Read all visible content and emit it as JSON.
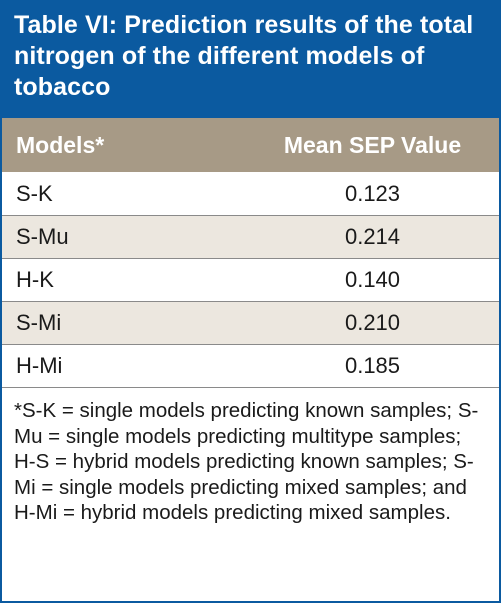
{
  "title": "Table VI: Prediction results of the total nitrogen of the different models of tobacco",
  "columns": [
    "Models*",
    "Mean SEP Value"
  ],
  "rows": [
    {
      "model": "S-K",
      "value": "0.123"
    },
    {
      "model": "S-Mu",
      "value": "0.214"
    },
    {
      "model": "H-K",
      "value": "0.140"
    },
    {
      "model": "S-Mi",
      "value": "0.210"
    },
    {
      "model": "H-Mi",
      "value": "0.185"
    }
  ],
  "footnote": "*S-K = single models predicting known samples; S-Mu = single models predicting multitype samples; H-S = hybrid models predicting known samples; S-Mi = single models predicting mixed samples; and H-Mi = hybrid models predicting mixed samples.",
  "colors": {
    "title_bg": "#0b5aa0",
    "header_bg": "#a79a86",
    "alt_row_bg": "#ece7df",
    "border": "#0b5aa0"
  }
}
